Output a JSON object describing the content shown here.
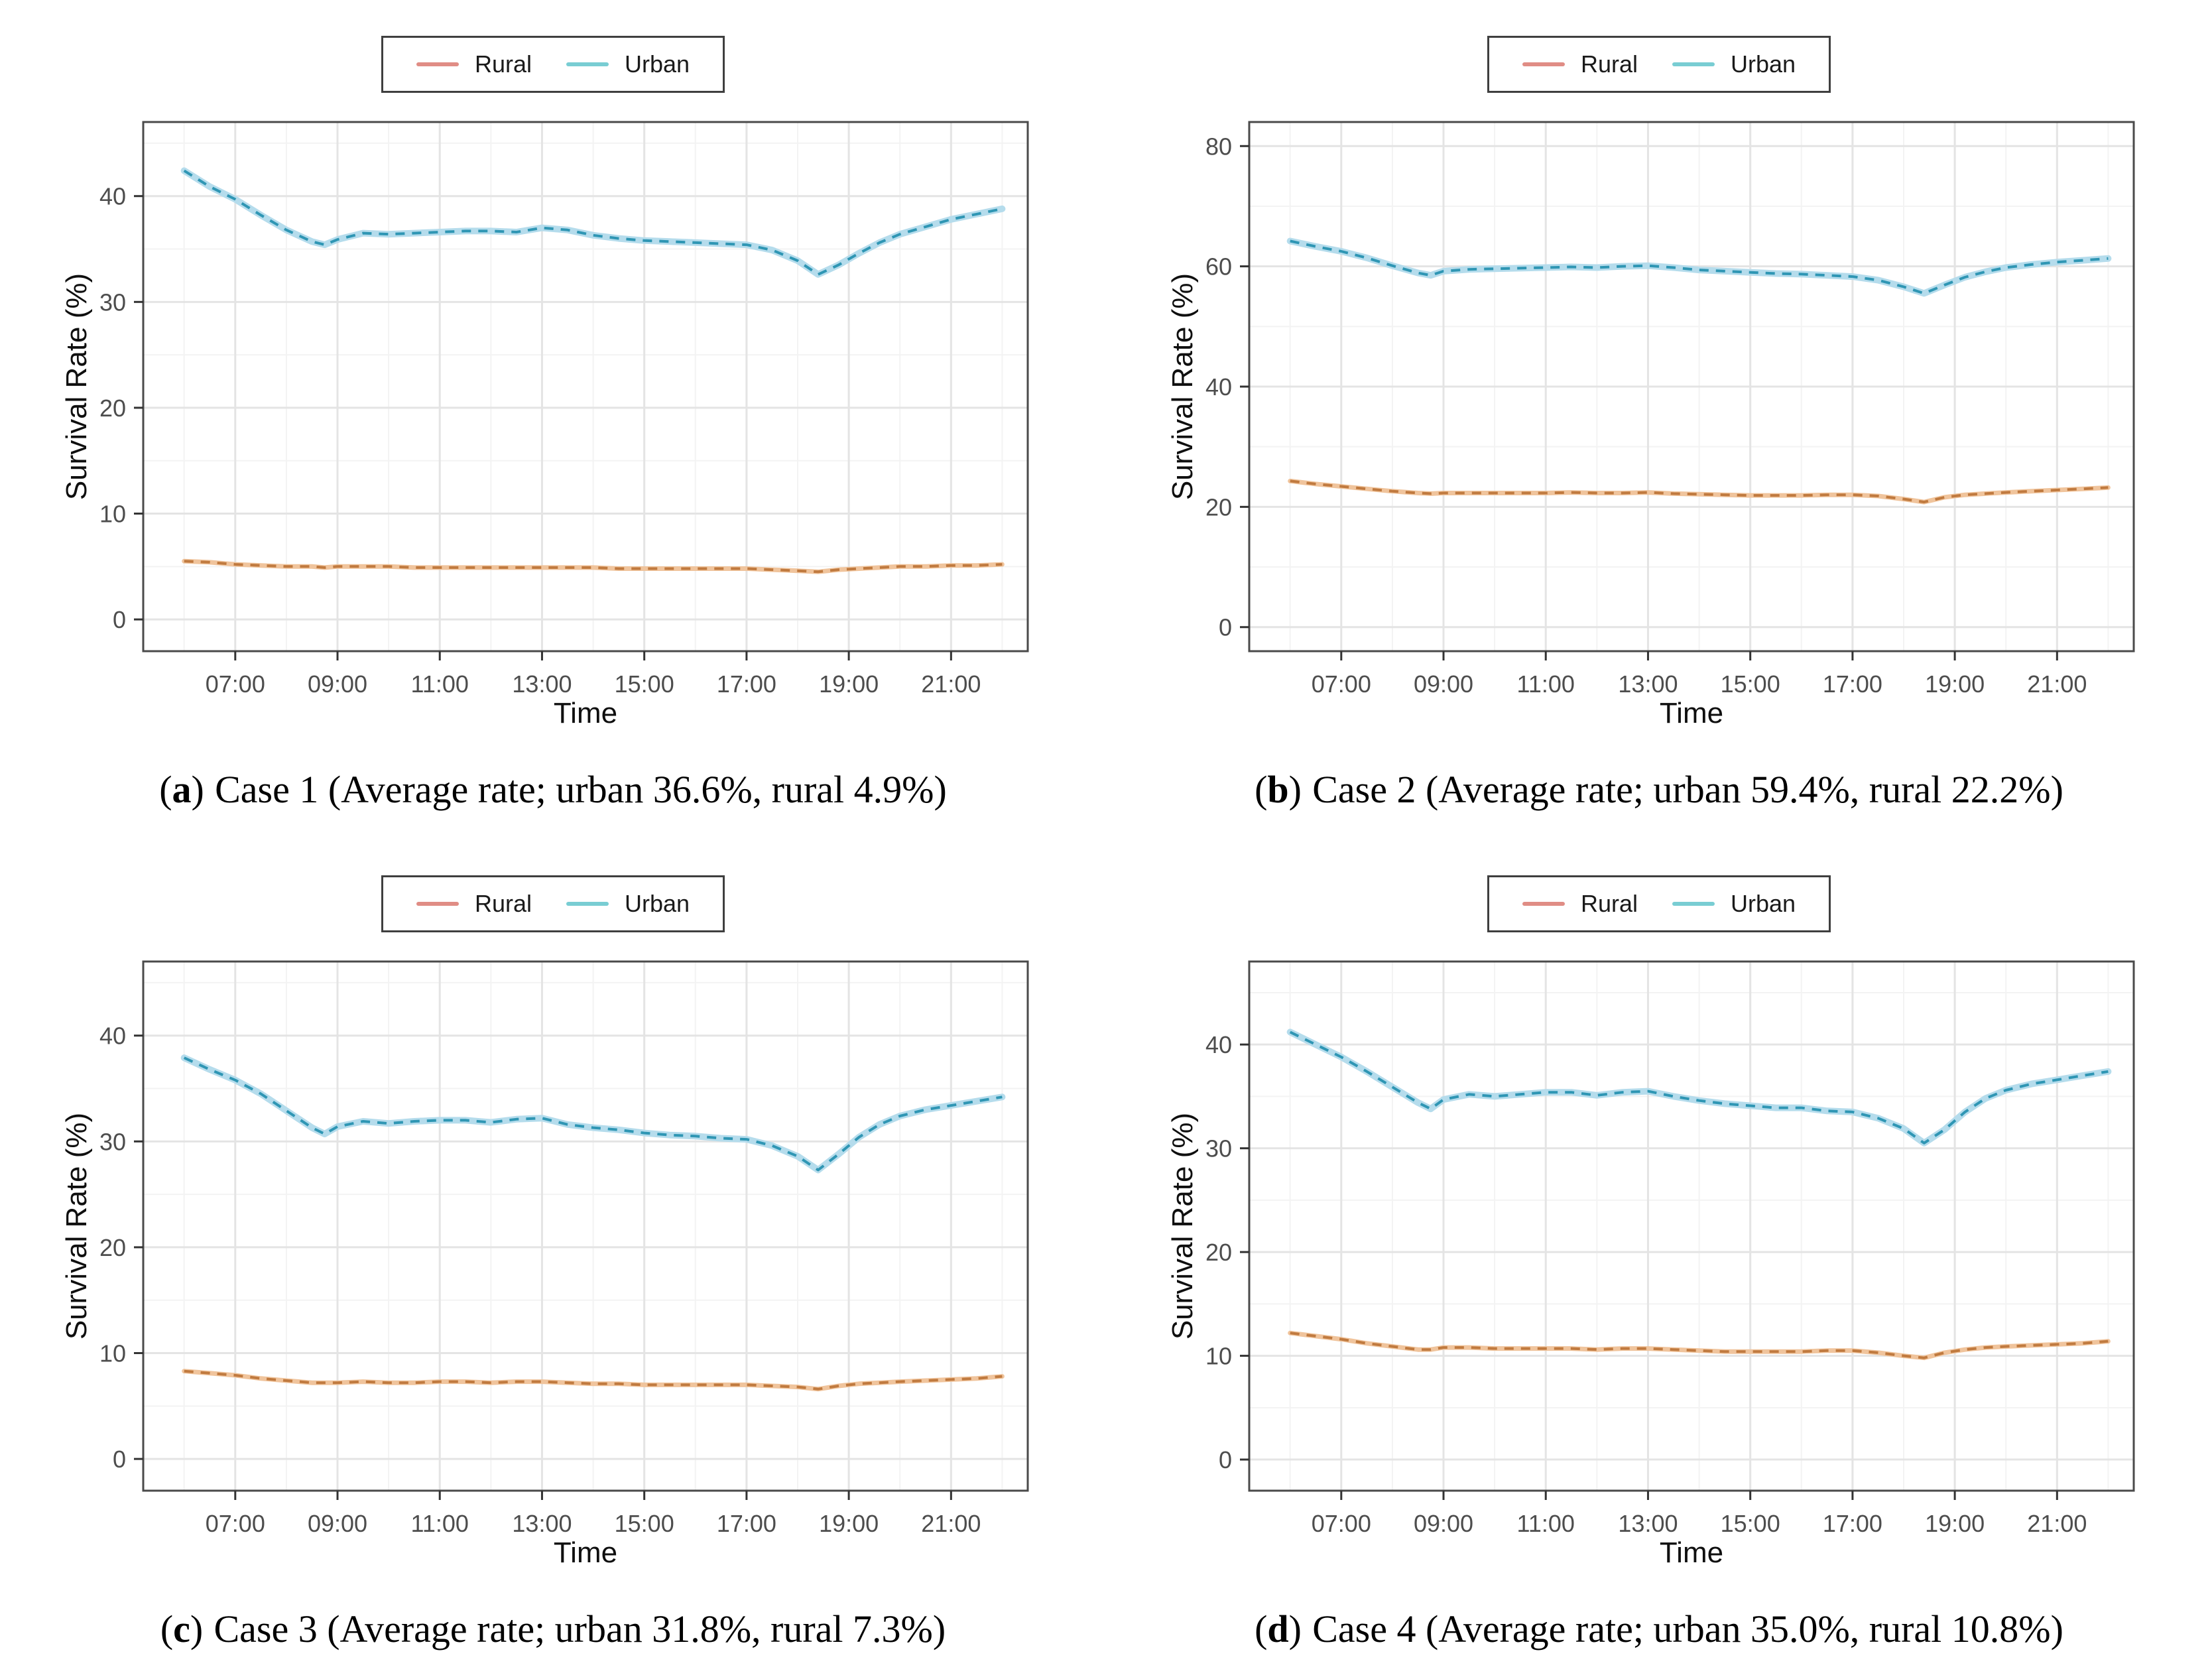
{
  "colors": {
    "background": "#ffffff",
    "panel_border": "#4a4a4a",
    "grid_major": "#e4e4e4",
    "grid_minor": "#f3f3f3",
    "tick_mark": "#333333",
    "tick_label": "#4d4d4d",
    "axis_title": "#0f0f0f",
    "rural_key": "#e08d85",
    "urban_key": "#79cdd3",
    "rural_line": "#f0c49c",
    "rural_dash": "#c07a3f",
    "urban_line": "#b5dcec",
    "urban_dash": "#2f96b4"
  },
  "chart_data": [
    {
      "id": "a",
      "type": "line",
      "caption": {
        "open": "(",
        "letter": "a",
        "close": ")",
        "text": "Case 1 (Average rate; urban 36.6%, rural 4.9%)"
      },
      "xlabel": "Time",
      "ylabel": "Survival Rate (%)",
      "legend_position": "top-center",
      "grid": true,
      "xlim": [
        5.2,
        22.5
      ],
      "ylim": [
        -3,
        47
      ],
      "xticks": {
        "values": [
          7,
          9,
          11,
          13,
          15,
          17,
          19,
          21
        ],
        "labels": [
          "07:00",
          "09:00",
          "11:00",
          "13:00",
          "15:00",
          "17:00",
          "19:00",
          "21:00"
        ]
      },
      "xminor": [
        6,
        8,
        10,
        12,
        14,
        16,
        18,
        20,
        22
      ],
      "yticks": [
        0,
        10,
        20,
        30,
        40
      ],
      "yminor": [
        5,
        15,
        25,
        35,
        45
      ],
      "x": [
        6,
        6.5,
        7,
        7.5,
        8,
        8.5,
        8.75,
        9,
        9.5,
        10,
        10.5,
        11,
        11.5,
        12,
        12.5,
        13,
        13.5,
        14,
        14.5,
        15,
        15.5,
        16,
        16.5,
        17,
        17.5,
        18,
        18.4,
        18.8,
        19.2,
        19.6,
        20,
        20.5,
        21,
        21.5,
        22
      ],
      "series": [
        {
          "name": "Rural",
          "color_key": "rural",
          "values": [
            5.5,
            5.4,
            5.2,
            5.1,
            5.0,
            5.0,
            4.9,
            5.0,
            5.0,
            5.0,
            4.9,
            4.9,
            4.9,
            4.9,
            4.9,
            4.9,
            4.9,
            4.9,
            4.8,
            4.8,
            4.8,
            4.8,
            4.8,
            4.8,
            4.7,
            4.6,
            4.5,
            4.7,
            4.8,
            4.9,
            5.0,
            5.0,
            5.1,
            5.1,
            5.2
          ]
        },
        {
          "name": "Urban",
          "color_key": "urban",
          "values": [
            42.4,
            40.9,
            39.7,
            38.2,
            36.8,
            35.7,
            35.4,
            35.9,
            36.5,
            36.4,
            36.5,
            36.6,
            36.7,
            36.7,
            36.6,
            37.0,
            36.8,
            36.3,
            36.0,
            35.8,
            35.7,
            35.6,
            35.5,
            35.4,
            34.9,
            33.9,
            32.6,
            33.5,
            34.6,
            35.6,
            36.4,
            37.1,
            37.8,
            38.3,
            38.8
          ]
        }
      ]
    },
    {
      "id": "b",
      "type": "line",
      "caption": {
        "open": "(",
        "letter": "b",
        "close": ")",
        "text": "Case 2 (Average rate; urban 59.4%, rural 22.2%)"
      },
      "xlabel": "Time",
      "ylabel": "Survival Rate (%)",
      "legend_position": "top-center",
      "grid": true,
      "xlim": [
        5.2,
        22.5
      ],
      "ylim": [
        -4,
        84
      ],
      "xticks": {
        "values": [
          7,
          9,
          11,
          13,
          15,
          17,
          19,
          21
        ],
        "labels": [
          "07:00",
          "09:00",
          "11:00",
          "13:00",
          "15:00",
          "17:00",
          "19:00",
          "21:00"
        ]
      },
      "xminor": [
        6,
        8,
        10,
        12,
        14,
        16,
        18,
        20,
        22
      ],
      "yticks": [
        0,
        20,
        40,
        60,
        80
      ],
      "yminor": [
        10,
        30,
        50,
        70
      ],
      "x": [
        6,
        6.5,
        7,
        7.5,
        8,
        8.5,
        8.75,
        9,
        9.5,
        10,
        10.5,
        11,
        11.5,
        12,
        12.5,
        13,
        13.5,
        14,
        14.5,
        15,
        15.5,
        16,
        16.5,
        17,
        17.5,
        18,
        18.4,
        18.8,
        19.2,
        19.6,
        20,
        20.5,
        21,
        21.5,
        22
      ],
      "series": [
        {
          "name": "Rural",
          "color_key": "rural",
          "values": [
            24.3,
            23.8,
            23.4,
            23.0,
            22.6,
            22.3,
            22.2,
            22.3,
            22.3,
            22.3,
            22.3,
            22.3,
            22.4,
            22.3,
            22.3,
            22.4,
            22.2,
            22.1,
            22.0,
            21.9,
            21.9,
            21.9,
            22.0,
            22.0,
            21.8,
            21.3,
            20.8,
            21.6,
            22.0,
            22.2,
            22.4,
            22.6,
            22.8,
            23.0,
            23.2
          ]
        },
        {
          "name": "Urban",
          "color_key": "urban",
          "values": [
            64.2,
            63.3,
            62.5,
            61.4,
            60.1,
            58.9,
            58.5,
            59.2,
            59.5,
            59.6,
            59.7,
            59.8,
            59.9,
            59.8,
            60.0,
            60.1,
            59.8,
            59.4,
            59.2,
            59.0,
            58.8,
            58.7,
            58.5,
            58.3,
            57.7,
            56.6,
            55.5,
            56.9,
            58.2,
            59.1,
            59.8,
            60.3,
            60.7,
            61.0,
            61.3
          ]
        }
      ]
    },
    {
      "id": "c",
      "type": "line",
      "caption": {
        "open": "(",
        "letter": "c",
        "close": ")",
        "text": "Case 3 (Average rate; urban 31.8%, rural 7.3%)"
      },
      "xlabel": "Time",
      "ylabel": "Survival Rate (%)",
      "legend_position": "top-center",
      "grid": true,
      "xlim": [
        5.2,
        22.5
      ],
      "ylim": [
        -3,
        47
      ],
      "xticks": {
        "values": [
          7,
          9,
          11,
          13,
          15,
          17,
          19,
          21
        ],
        "labels": [
          "07:00",
          "09:00",
          "11:00",
          "13:00",
          "15:00",
          "17:00",
          "19:00",
          "21:00"
        ]
      },
      "xminor": [
        6,
        8,
        10,
        12,
        14,
        16,
        18,
        20,
        22
      ],
      "yticks": [
        0,
        10,
        20,
        30,
        40
      ],
      "yminor": [
        5,
        15,
        25,
        35,
        45
      ],
      "x": [
        6,
        6.5,
        7,
        7.5,
        8,
        8.5,
        8.75,
        9,
        9.5,
        10,
        10.5,
        11,
        11.5,
        12,
        12.5,
        13,
        13.5,
        14,
        14.5,
        15,
        15.5,
        16,
        16.5,
        17,
        17.5,
        18,
        18.4,
        18.8,
        19.2,
        19.6,
        20,
        20.5,
        21,
        21.5,
        22
      ],
      "series": [
        {
          "name": "Rural",
          "color_key": "rural",
          "values": [
            8.3,
            8.1,
            7.9,
            7.6,
            7.4,
            7.2,
            7.2,
            7.2,
            7.3,
            7.2,
            7.2,
            7.3,
            7.3,
            7.2,
            7.3,
            7.3,
            7.2,
            7.1,
            7.1,
            7.0,
            7.0,
            7.0,
            7.0,
            7.0,
            6.9,
            6.8,
            6.6,
            6.9,
            7.1,
            7.2,
            7.3,
            7.4,
            7.5,
            7.6,
            7.8
          ]
        },
        {
          "name": "Urban",
          "color_key": "urban",
          "values": [
            37.9,
            36.8,
            35.8,
            34.5,
            32.9,
            31.3,
            30.7,
            31.4,
            31.9,
            31.7,
            31.9,
            32.0,
            32.0,
            31.8,
            32.1,
            32.2,
            31.6,
            31.3,
            31.1,
            30.8,
            30.6,
            30.5,
            30.3,
            30.2,
            29.6,
            28.6,
            27.3,
            28.8,
            30.4,
            31.6,
            32.4,
            33.0,
            33.4,
            33.8,
            34.2
          ]
        }
      ]
    },
    {
      "id": "d",
      "type": "line",
      "caption": {
        "open": "(",
        "letter": "d",
        "close": ")",
        "text": "Case 4 (Average rate; urban 35.0%, rural 10.8%)"
      },
      "xlabel": "Time",
      "ylabel": "Survival Rate (%)",
      "legend_position": "top-center",
      "grid": true,
      "xlim": [
        5.2,
        22.5
      ],
      "ylim": [
        -3,
        48
      ],
      "xticks": {
        "values": [
          7,
          9,
          11,
          13,
          15,
          17,
          19,
          21
        ],
        "labels": [
          "07:00",
          "09:00",
          "11:00",
          "13:00",
          "15:00",
          "17:00",
          "19:00",
          "21:00"
        ]
      },
      "xminor": [
        6,
        8,
        10,
        12,
        14,
        16,
        18,
        20,
        22
      ],
      "yticks": [
        0,
        10,
        20,
        30,
        40
      ],
      "yminor": [
        5,
        15,
        25,
        35,
        45
      ],
      "x": [
        6,
        6.5,
        7,
        7.5,
        8,
        8.5,
        8.75,
        9,
        9.5,
        10,
        10.5,
        11,
        11.5,
        12,
        12.5,
        13,
        13.5,
        14,
        14.5,
        15,
        15.5,
        16,
        16.5,
        17,
        17.5,
        18,
        18.4,
        18.8,
        19.2,
        19.6,
        20,
        20.5,
        21,
        21.5,
        22
      ],
      "series": [
        {
          "name": "Rural",
          "color_key": "rural",
          "values": [
            12.2,
            11.9,
            11.6,
            11.2,
            10.9,
            10.6,
            10.6,
            10.8,
            10.8,
            10.7,
            10.7,
            10.7,
            10.7,
            10.6,
            10.7,
            10.7,
            10.6,
            10.5,
            10.4,
            10.4,
            10.4,
            10.4,
            10.5,
            10.5,
            10.3,
            10.0,
            9.8,
            10.3,
            10.6,
            10.8,
            10.9,
            11.0,
            11.1,
            11.2,
            11.4
          ]
        },
        {
          "name": "Urban",
          "color_key": "urban",
          "values": [
            41.2,
            40.0,
            38.8,
            37.4,
            35.9,
            34.4,
            33.8,
            34.7,
            35.2,
            35.0,
            35.2,
            35.4,
            35.4,
            35.1,
            35.4,
            35.5,
            35.0,
            34.6,
            34.3,
            34.1,
            33.9,
            33.9,
            33.6,
            33.5,
            32.9,
            31.9,
            30.5,
            31.8,
            33.5,
            34.8,
            35.6,
            36.2,
            36.6,
            37.0,
            37.4
          ]
        }
      ]
    }
  ]
}
